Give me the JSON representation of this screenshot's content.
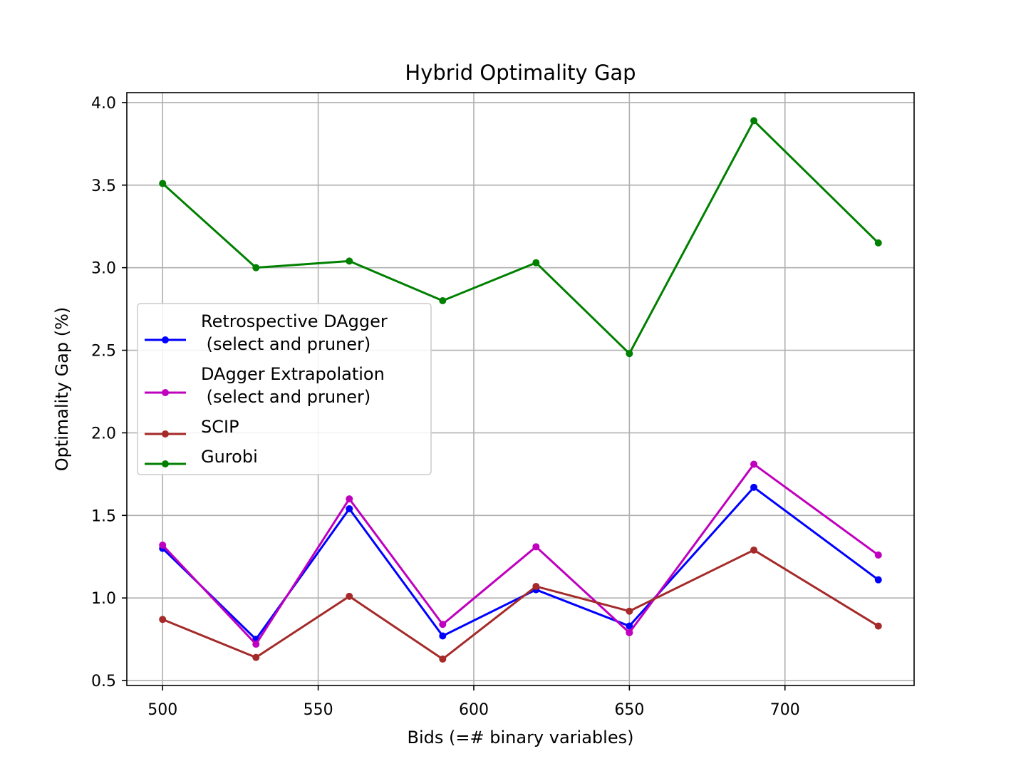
{
  "chart_data": {
    "type": "line",
    "title": "Hybrid Optimality Gap",
    "xlabel": "Bids (=# binary variables)",
    "ylabel": "Optimality Gap (%)",
    "x": [
      500,
      530,
      560,
      590,
      620,
      650,
      690,
      730
    ],
    "xlim": [
      488.5,
      741.5
    ],
    "ylim": [
      0.47,
      4.06
    ],
    "xticks": [
      "500",
      "550",
      "600",
      "650",
      "700"
    ],
    "xtick_values": [
      500,
      550,
      600,
      650,
      700
    ],
    "yticks": [
      "0.5",
      "1.0",
      "1.5",
      "2.0",
      "2.5",
      "3.0",
      "3.5",
      "4.0"
    ],
    "ytick_values": [
      0.5,
      1.0,
      1.5,
      2.0,
      2.5,
      3.0,
      3.5,
      4.0
    ],
    "grid": true,
    "legend_position": "center-left",
    "series": [
      {
        "name_lines": [
          "Retrospective DAgger",
          " (select and pruner)"
        ],
        "color": "#0000ff",
        "values": [
          1.3,
          0.75,
          1.54,
          0.77,
          1.05,
          0.83,
          1.67,
          1.11
        ]
      },
      {
        "name_lines": [
          "DAgger Extrapolation",
          " (select and pruner)"
        ],
        "color": "#bf00bf",
        "values": [
          1.32,
          0.72,
          1.6,
          0.84,
          1.31,
          0.79,
          1.81,
          1.26
        ]
      },
      {
        "name_lines": [
          "SCIP"
        ],
        "color": "#a52a2a",
        "values": [
          0.87,
          0.64,
          1.01,
          0.63,
          1.07,
          0.92,
          1.29,
          0.83
        ]
      },
      {
        "name_lines": [
          "Gurobi"
        ],
        "color": "#008000",
        "values": [
          3.51,
          3.0,
          3.04,
          2.8,
          3.03,
          2.48,
          3.89,
          3.15
        ]
      }
    ]
  }
}
